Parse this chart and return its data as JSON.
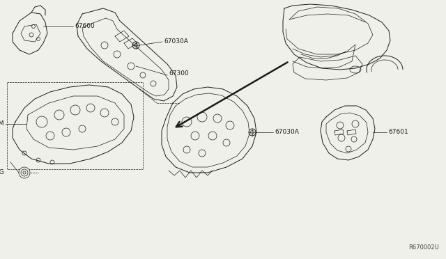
{
  "bg_color": "#f0f0ea",
  "line_color": "#1a1a1a",
  "label_color": "#1a1a1a",
  "diagram_ref": "R670002U",
  "label_fontsize": 6.5
}
